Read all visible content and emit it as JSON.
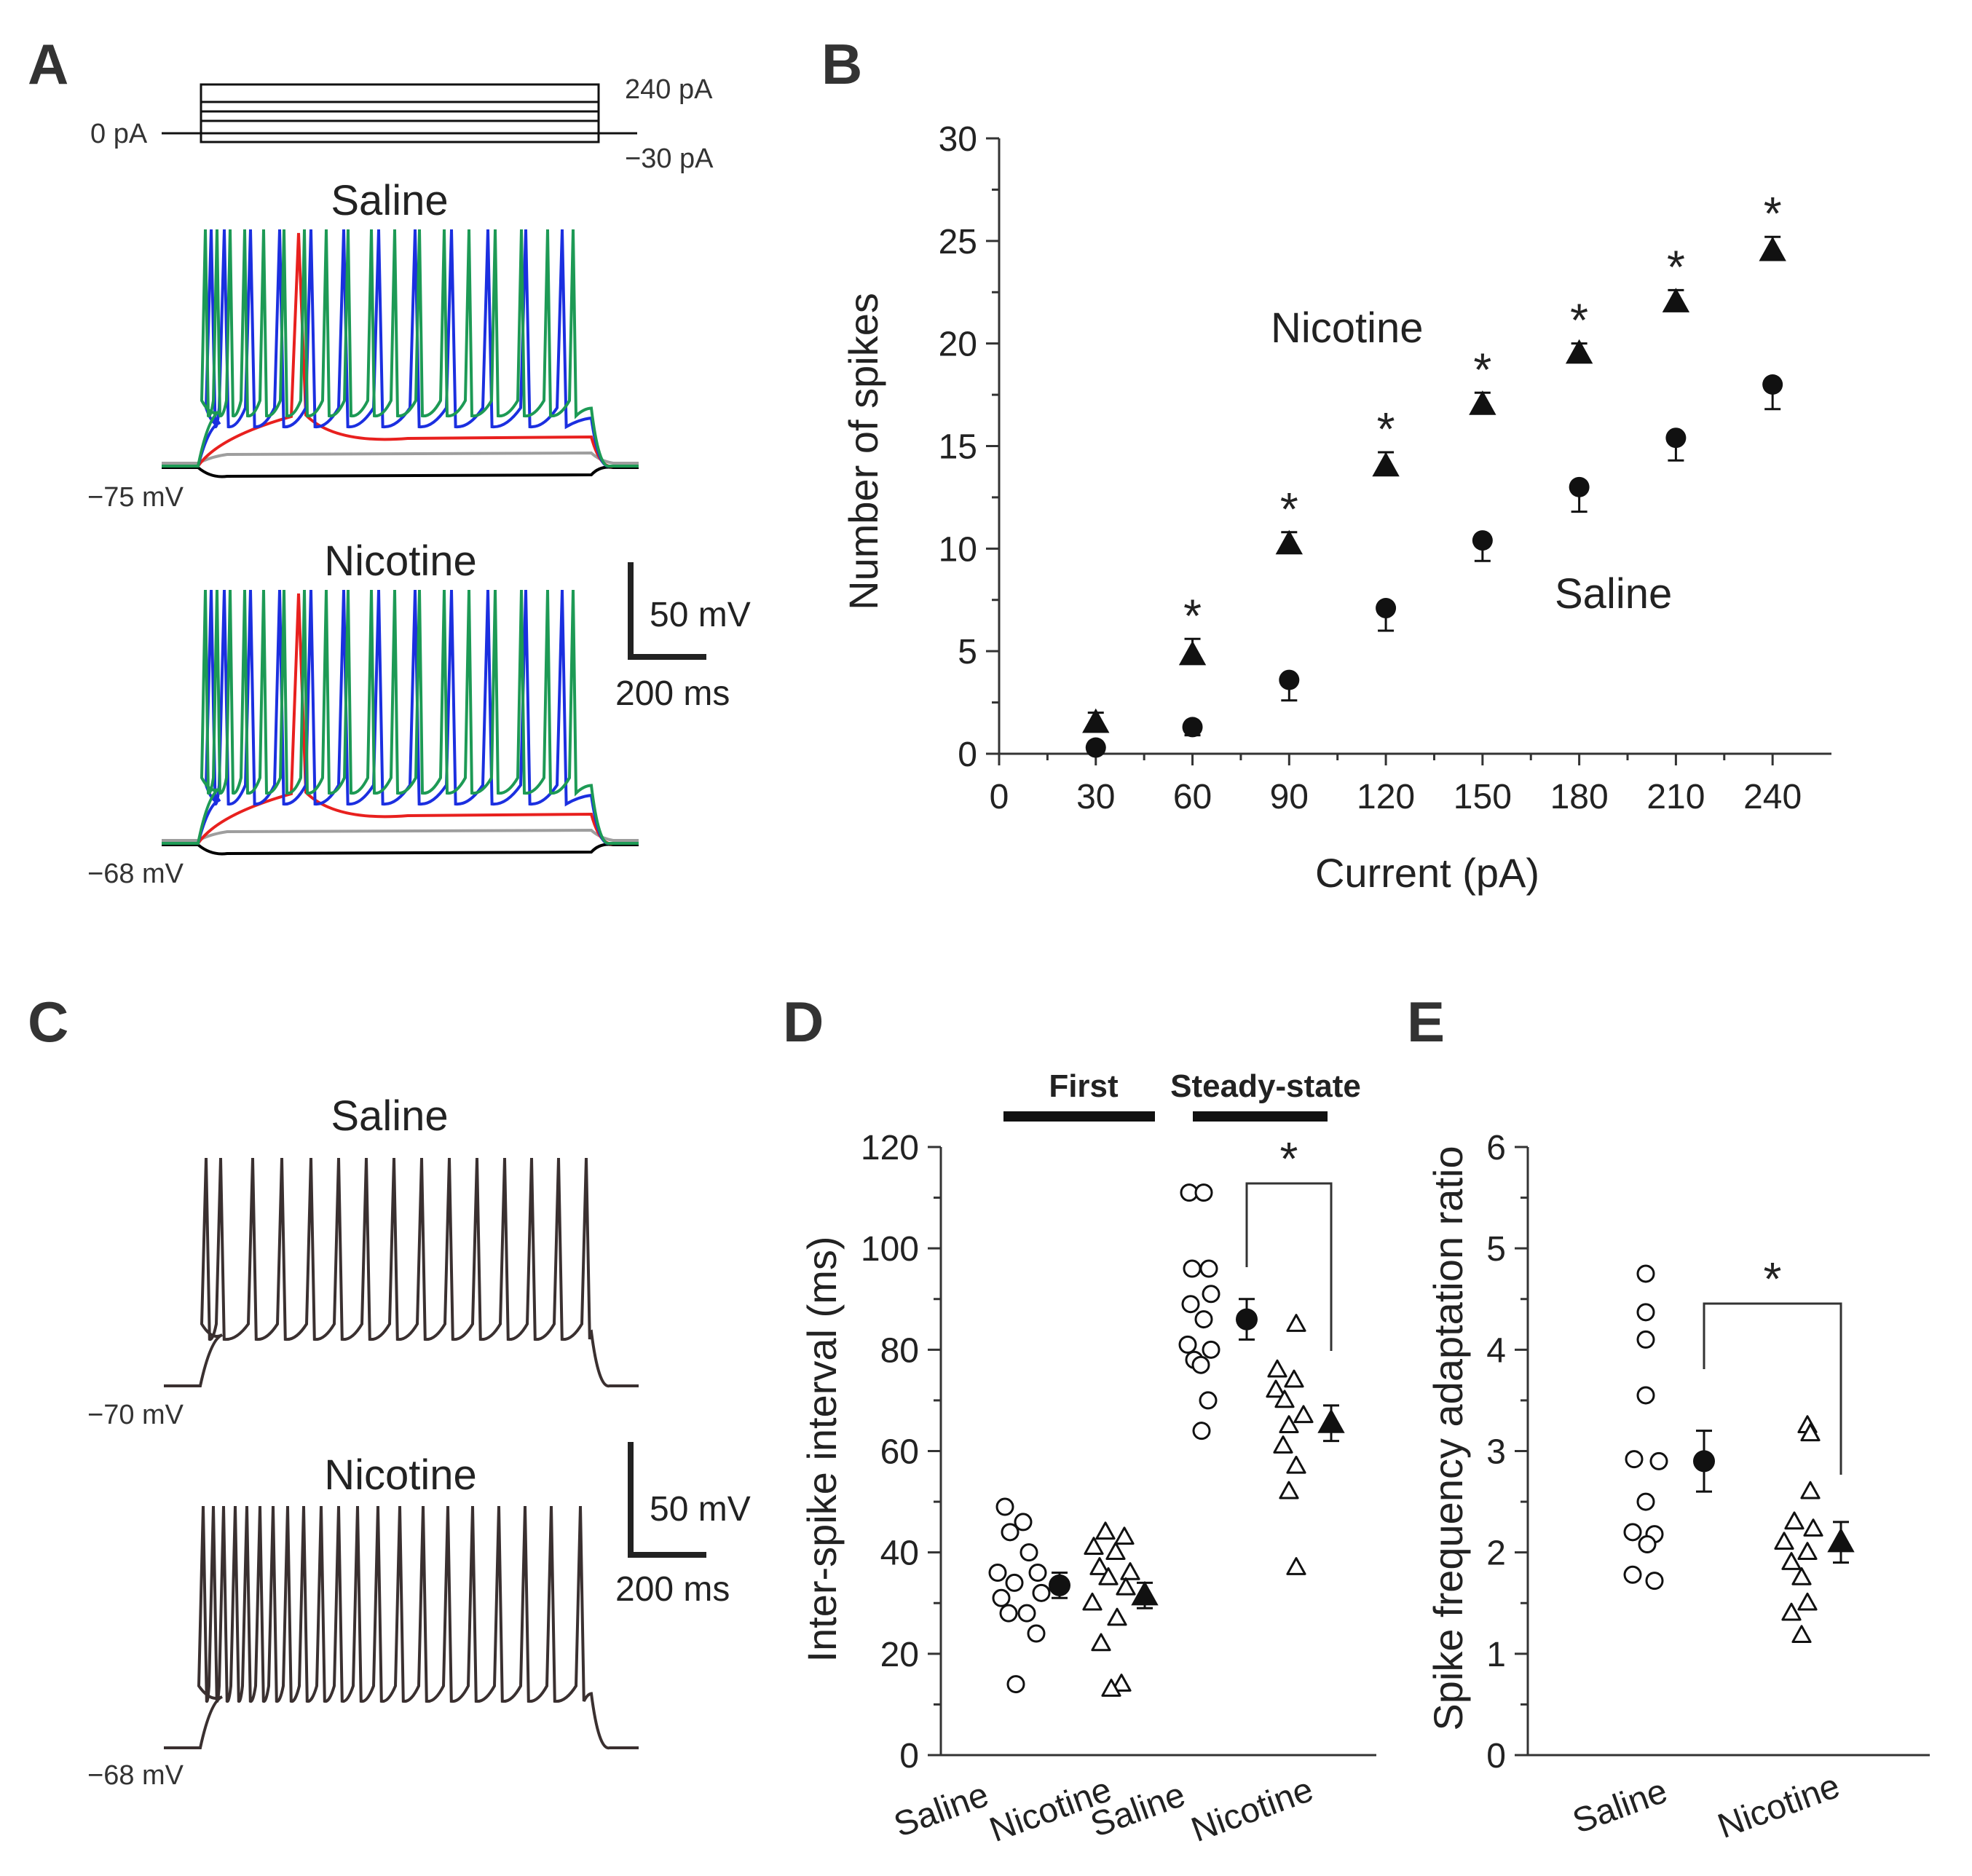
{
  "chart_data": [
    {
      "panel": "A",
      "type": "line",
      "protocol": {
        "labels": [
          "240 pA",
          "0 pA",
          "−30 pA"
        ],
        "current_steps_pA": [
          -30,
          0,
          30,
          60,
          90,
          120,
          150,
          180,
          210,
          240
        ]
      },
      "traces": [
        {
          "condition": "Saline",
          "resting_label": "−75 mV",
          "series_colors": [
            "#000000",
            "#9e9e9e",
            "#e8201e",
            "#1b2fe0",
            "#1d9a55"
          ]
        },
        {
          "condition": "Nicotine",
          "resting_label": "−68 mV",
          "series_colors": [
            "#000000",
            "#9e9e9e",
            "#e8201e",
            "#1b2fe0",
            "#1d9a55"
          ]
        }
      ],
      "scale_bar": {
        "voltage": "50 mV",
        "time": "200 ms"
      }
    },
    {
      "panel": "B",
      "type": "scatter",
      "xlabel": "Current (pA)",
      "ylabel": "Number of spikes",
      "xlim": [
        0,
        250
      ],
      "ylim": [
        0,
        30
      ],
      "xticks": [
        0,
        30,
        60,
        90,
        120,
        150,
        180,
        210,
        240
      ],
      "yticks": [
        0,
        5,
        10,
        15,
        20,
        25,
        30
      ],
      "series": [
        {
          "name": "Nicotine",
          "marker": "triangle",
          "x": [
            30,
            60,
            90,
            120,
            150,
            180,
            210,
            240
          ],
          "values": [
            1.5,
            4.8,
            10.2,
            14.0,
            17.0,
            19.5,
            22.0,
            24.5
          ],
          "err": [
            0.5,
            0.8,
            0.6,
            0.7,
            0.6,
            0.5,
            0.6,
            0.7
          ]
        },
        {
          "name": "Saline",
          "marker": "circle",
          "x": [
            30,
            60,
            90,
            120,
            150,
            180,
            210,
            240
          ],
          "values": [
            0.3,
            1.3,
            3.6,
            7.1,
            10.4,
            13.0,
            15.4,
            18.0
          ],
          "err": [
            0.2,
            0.4,
            1.0,
            1.1,
            1.0,
            1.2,
            1.1,
            1.2
          ]
        }
      ],
      "significance": {
        "symbol": "*",
        "x": [
          60,
          90,
          120,
          150,
          180,
          210,
          240
        ]
      }
    },
    {
      "panel": "C",
      "type": "line",
      "traces": [
        {
          "condition": "Saline",
          "resting_label": "−70 mV",
          "color": "#3a3030"
        },
        {
          "condition": "Nicotine",
          "resting_label": "−68 mV",
          "color": "#3a3030"
        }
      ],
      "scale_bar": {
        "voltage": "50 mV",
        "time": "200 ms"
      }
    },
    {
      "panel": "D",
      "type": "scatter",
      "ylabel": "Inter-spike interval (ms)",
      "ylim": [
        0,
        120
      ],
      "yticks": [
        0,
        20,
        40,
        60,
        80,
        100,
        120
      ],
      "group_labels": [
        "First",
        "Steady-state"
      ],
      "categories": [
        "Saline",
        "Nicotine",
        "Saline",
        "Nicotine"
      ],
      "series": [
        {
          "name": "Saline",
          "group": "First",
          "marker": "open-circle",
          "values": [
            49,
            46,
            44,
            40,
            36,
            36,
            34,
            32,
            31,
            28,
            28,
            24,
            14
          ],
          "mean": 33.5,
          "err": 2.5
        },
        {
          "name": "Nicotine",
          "group": "First",
          "marker": "open-triangle",
          "values": [
            44,
            43,
            41,
            40,
            37,
            36,
            35,
            33,
            30,
            27,
            22,
            14,
            13
          ],
          "mean": 31.5,
          "err": 2.5
        },
        {
          "name": "Saline",
          "group": "Steady-state",
          "marker": "open-circle",
          "values": [
            111,
            111,
            96,
            96,
            91,
            89,
            86,
            81,
            80,
            78,
            77,
            70,
            64
          ],
          "mean": 86,
          "err": 4
        },
        {
          "name": "Nicotine",
          "group": "Steady-state",
          "marker": "open-triangle",
          "values": [
            85,
            76,
            74,
            72,
            70,
            67,
            65,
            61,
            57,
            52,
            37
          ],
          "mean": 65.5,
          "err": 3.5
        }
      ],
      "significance": {
        "symbol": "*",
        "between": [
          "Saline",
          "Nicotine"
        ],
        "group": "Steady-state"
      }
    },
    {
      "panel": "E",
      "type": "scatter",
      "ylabel": "Spike frequency adaptation ratio",
      "ylim": [
        0,
        6
      ],
      "yticks": [
        0,
        1,
        2,
        3,
        4,
        5,
        6
      ],
      "categories": [
        "Saline",
        "Nicotine"
      ],
      "series": [
        {
          "name": "Saline",
          "marker": "open-circle",
          "values": [
            4.75,
            4.37,
            4.1,
            3.55,
            2.92,
            2.9,
            2.5,
            2.2,
            2.18,
            2.08,
            1.78,
            1.72
          ],
          "mean": 2.9,
          "err": 0.3
        },
        {
          "name": "Nicotine",
          "marker": "open-triangle",
          "values": [
            3.25,
            3.17,
            2.6,
            2.3,
            2.23,
            2.1,
            2.0,
            1.9,
            1.75,
            1.5,
            1.4,
            1.18
          ],
          "mean": 2.1,
          "err": 0.2
        }
      ],
      "significance": {
        "symbol": "*",
        "between": [
          "Saline",
          "Nicotine"
        ]
      }
    }
  ],
  "panels": {
    "a": {
      "letter": "A"
    },
    "b": {
      "letter": "B"
    },
    "c": {
      "letter": "C"
    },
    "d": {
      "letter": "D"
    },
    "e": {
      "letter": "E"
    }
  }
}
